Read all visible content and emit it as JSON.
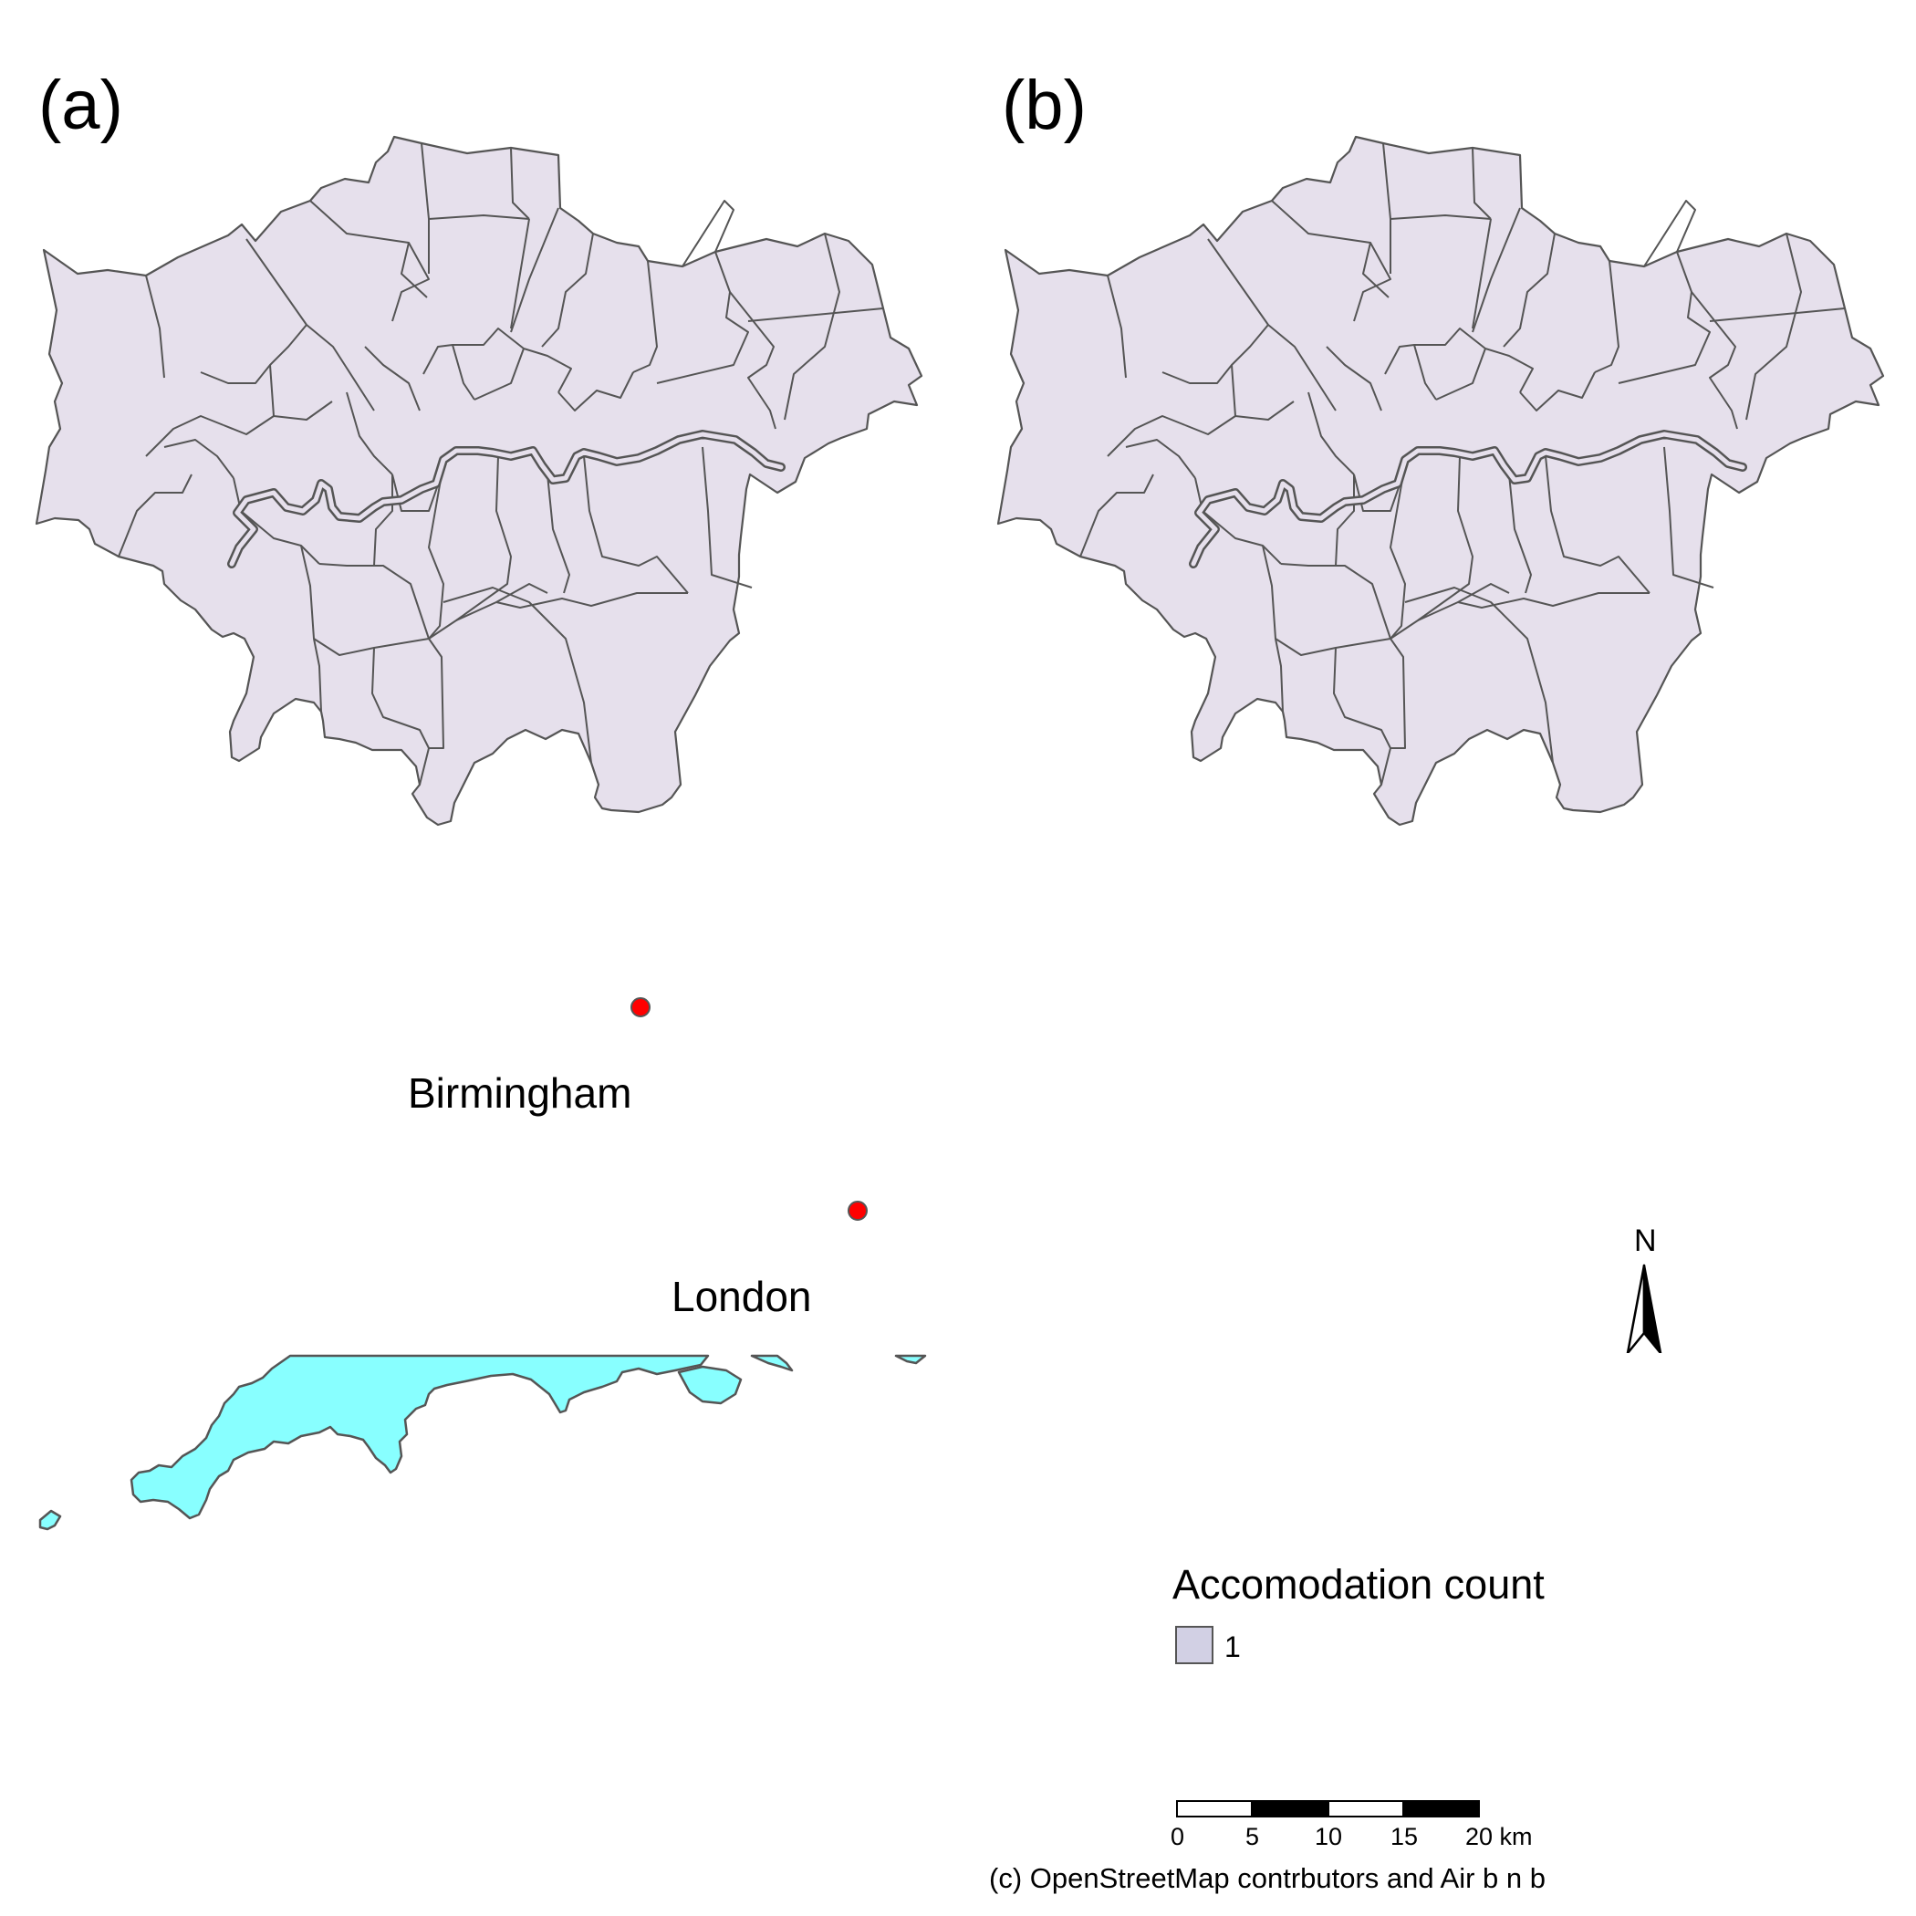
{
  "panels": {
    "a": "(a)",
    "b": "(b)"
  },
  "cities": {
    "birmingham": "Birmingham",
    "london": "London",
    "dot_color": "#ff0000"
  },
  "map_colors": {
    "borough_fill": "#e6e0ec",
    "coast_fill": "#88ffff",
    "outline": "#555555"
  },
  "north_arrow": {
    "label": "N"
  },
  "legend": {
    "title": "Accomodation count",
    "items": [
      {
        "label": "1",
        "color": "#d2d0e4"
      }
    ]
  },
  "scale_bar": {
    "ticks": [
      "0",
      "5",
      "10",
      "15",
      "20 km"
    ]
  },
  "credit": "(c) OpenStreetMap contrbutors and Air b n b"
}
